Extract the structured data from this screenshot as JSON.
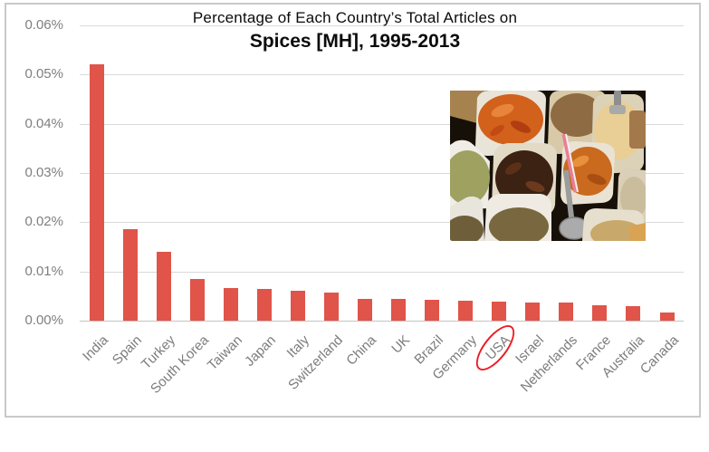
{
  "chart_data": {
    "type": "bar",
    "title": [
      "Percentage of Each Country’s Total Articles on",
      "Spices [MH], 1995-2013"
    ],
    "categories": [
      "India",
      "Spain",
      "Turkey",
      "South Korea",
      "Taiwan",
      "Japan",
      "Italy",
      "Switzerland",
      "China",
      "UK",
      "Brazil",
      "Germany",
      "USA",
      "Israel",
      "Netherlands",
      "France",
      "Australia",
      "Canada"
    ],
    "values": [
      0.052,
      0.0185,
      0.0139,
      0.0085,
      0.0067,
      0.0064,
      0.006,
      0.0057,
      0.0044,
      0.0044,
      0.0043,
      0.0041,
      0.0038,
      0.0037,
      0.0037,
      0.0032,
      0.0029,
      0.0017
    ],
    "values_unit": "percent",
    "y_tick_labels": [
      "0.00%",
      "0.01%",
      "0.02%",
      "0.03%",
      "0.04%",
      "0.05%",
      "0.06%"
    ],
    "ylim": [
      0,
      0.06
    ],
    "grid": "horizontal",
    "legend": "none",
    "xlabel": "",
    "ylabel": "",
    "annotation": {
      "shape": "ellipse",
      "category": "USA"
    },
    "colors": {
      "bar": "#E05449",
      "gridline": "#D9D9D9",
      "axis_line": "#C4C4C4",
      "tick_label": "#7F7F7F",
      "x_label": "#7C7C7C",
      "title": "#0B0B0B",
      "annotation_circle": "#EC1C24",
      "frame_border": "#C9C9C9"
    },
    "inset_photo": {
      "name": "spice-market-photo",
      "palette": [
        "#D2611C",
        "#8E6B43",
        "#E9CE95",
        "#9EA160",
        "#3B2213",
        "#C96A1F",
        "#C9BD9E",
        "#79683F",
        "#C9A96B",
        "#A8A8A8"
      ]
    }
  }
}
